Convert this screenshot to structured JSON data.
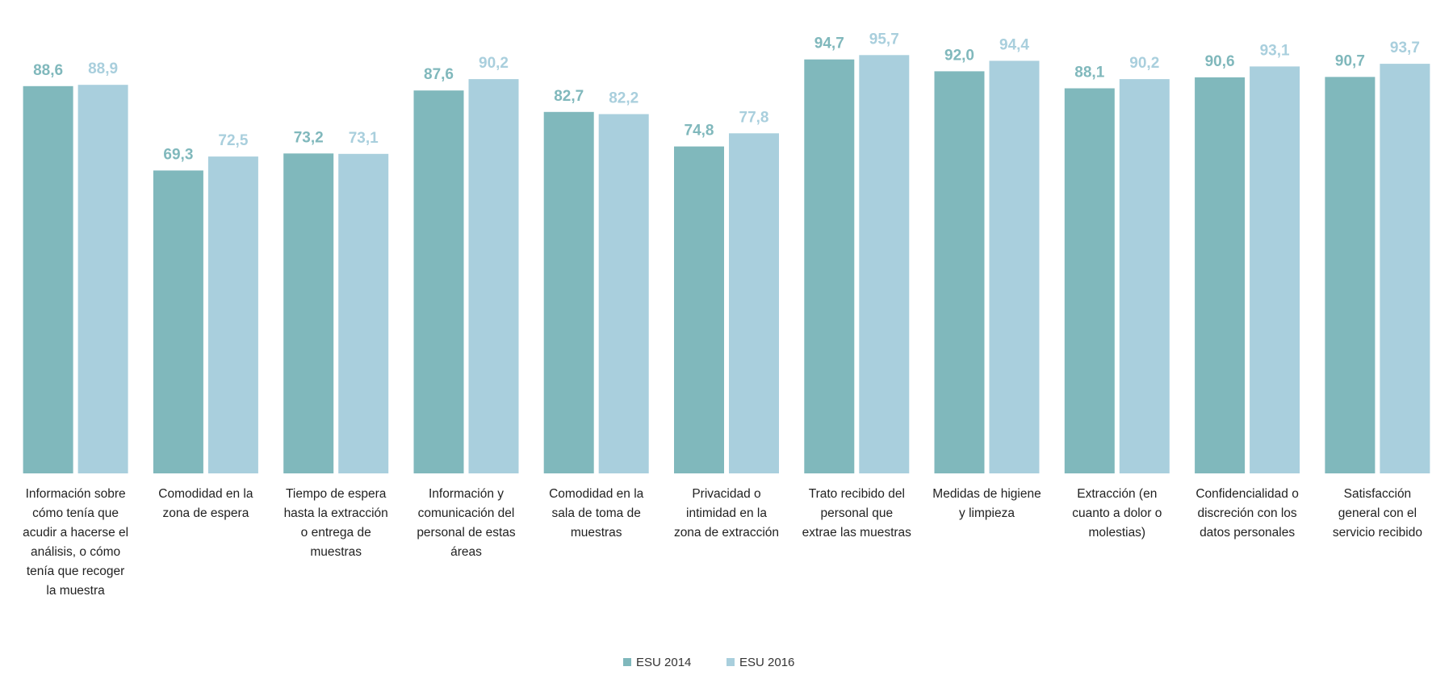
{
  "chart_data": {
    "type": "bar",
    "categories": [
      [
        "Información sobre",
        "cómo tenía que",
        "acudir a hacerse el",
        "análisis, o cómo",
        "tenía que recoger",
        "la muestra"
      ],
      [
        "Comodidad en la",
        "zona de espera"
      ],
      [
        "Tiempo de espera",
        "hasta la extracción",
        "o entrega de",
        "muestras"
      ],
      [
        "Información y",
        "comunicación del",
        "personal de estas",
        "áreas"
      ],
      [
        "Comodidad en la",
        "sala de toma de",
        "muestras"
      ],
      [
        "Privacidad o",
        "intimidad en la",
        "zona de extracción"
      ],
      [
        "Trato recibido del",
        "personal que",
        "extrae las muestras"
      ],
      [
        "Medidas de higiene",
        "y limpieza"
      ],
      [
        "Extracción (en",
        "cuanto a dolor o",
        "molestias)"
      ],
      [
        "Confidencialidad o",
        "discreción con los",
        "datos personales"
      ],
      [
        "Satisfacción",
        "general con el",
        "servicio recibido"
      ]
    ],
    "series": [
      {
        "name": "ESU 2014",
        "color": "#80b8bc",
        "values": [
          88.6,
          69.3,
          73.2,
          87.6,
          82.7,
          74.8,
          94.7,
          92.0,
          88.1,
          90.6,
          90.7
        ],
        "labels": [
          "88,6",
          "69,3",
          "73,2",
          "87,6",
          "82,7",
          "74,8",
          "94,7",
          "92,0",
          "88,1",
          "90,6",
          "90,7"
        ]
      },
      {
        "name": "ESU 2016",
        "color": "#a9cfdd",
        "values": [
          88.9,
          72.5,
          73.1,
          90.2,
          82.2,
          77.8,
          95.7,
          94.4,
          90.2,
          93.1,
          93.7
        ],
        "labels": [
          "88,9",
          "72,5",
          "73,1",
          "90,2",
          "82,2",
          "77,8",
          "95,7",
          "94,4",
          "90,2",
          "93,1",
          "93,7"
        ]
      }
    ],
    "ylim": [
      0,
      100
    ],
    "legend_position": "bottom-center",
    "grid": false
  }
}
